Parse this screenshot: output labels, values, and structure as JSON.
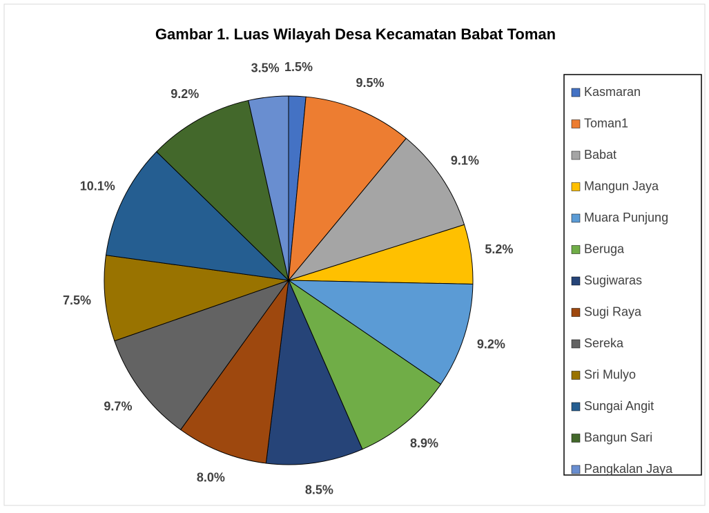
{
  "chart_data": {
    "type": "pie",
    "title": "Gambar 1. Luas Wilayah Desa Kecamatan Babat Toman",
    "categories": [
      "Kasmaran",
      "Toman1",
      "Babat",
      "Mangun Jaya",
      "Muara Punjung",
      "Beruga",
      "Sugiwaras",
      "Sugi Raya",
      "Sereka",
      "Sri Mulyo",
      "Sungai Angit",
      "Bangun Sari",
      "Pangkalan Jaya"
    ],
    "values": [
      1.5,
      9.5,
      9.1,
      5.2,
      9.2,
      8.9,
      8.5,
      8.0,
      9.7,
      7.5,
      10.1,
      9.2,
      3.5
    ],
    "value_labels": [
      "1.5%",
      "9.5%",
      "9.1%",
      "5.2%",
      "9.2%",
      "8.9%",
      "8.5%",
      "8.0%",
      "9.7%",
      "7.5%",
      "10.1%",
      "9.2%",
      "3.5%"
    ],
    "colors": [
      "#4472c4",
      "#ed7d31",
      "#a5a5a5",
      "#ffc000",
      "#5b9bd5",
      "#70ad47",
      "#264478",
      "#9e480e",
      "#636363",
      "#997300",
      "#255e91",
      "#43682b",
      "#698ed0"
    ],
    "legend": "right"
  }
}
